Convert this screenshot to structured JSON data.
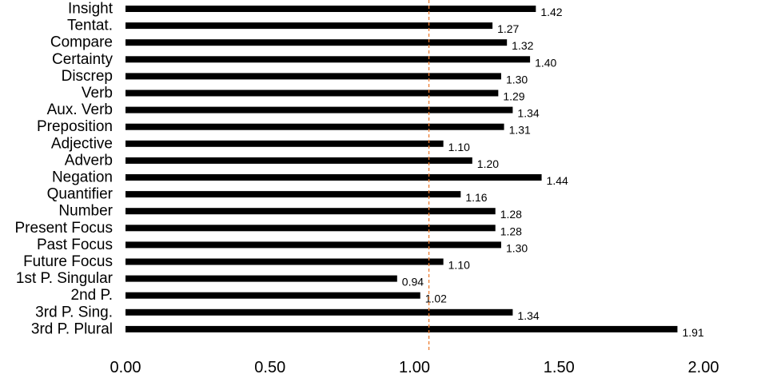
{
  "chart_data": {
    "type": "bar",
    "orientation": "horizontal",
    "categories": [
      "Insight",
      "Tentat.",
      "Compare",
      "Certainty",
      "Discrep",
      "Verb",
      "Aux. Verb",
      "Preposition",
      "Adjective",
      "Adverb",
      "Negation",
      "Quantifier",
      "Number",
      "Present Focus",
      "Past Focus",
      "Future Focus",
      "1st P. Singular",
      "2nd P.",
      "3rd P. Sing.",
      "3rd P. Plural"
    ],
    "values": [
      1.42,
      1.27,
      1.32,
      1.4,
      1.3,
      1.29,
      1.34,
      1.31,
      1.1,
      1.2,
      1.44,
      1.16,
      1.28,
      1.28,
      1.3,
      1.1,
      0.94,
      1.02,
      1.34,
      1.91
    ],
    "value_labels": [
      "1.42",
      "1.27",
      "1.32",
      "1.40",
      "1.30",
      "1.29",
      "1.34",
      "1.31",
      "1.10",
      "1.20",
      "1.44",
      "1.16",
      "1.28",
      "1.28",
      "1.30",
      "1.10",
      "0.94",
      "1.02",
      "1.34",
      "1.91"
    ],
    "xlim": [
      0,
      2
    ],
    "xticks": [
      0,
      0.5,
      1.0,
      1.5,
      2.0
    ],
    "xtick_labels": [
      "0.00",
      "0.50",
      "1.00",
      "1.50",
      "2.00"
    ],
    "reference_line": {
      "x": 1.05,
      "style": "dashed",
      "color": "#ed7d31"
    },
    "bar_color": "#000000",
    "grid": false,
    "legend": false,
    "title": "",
    "xlabel": "",
    "ylabel": ""
  }
}
